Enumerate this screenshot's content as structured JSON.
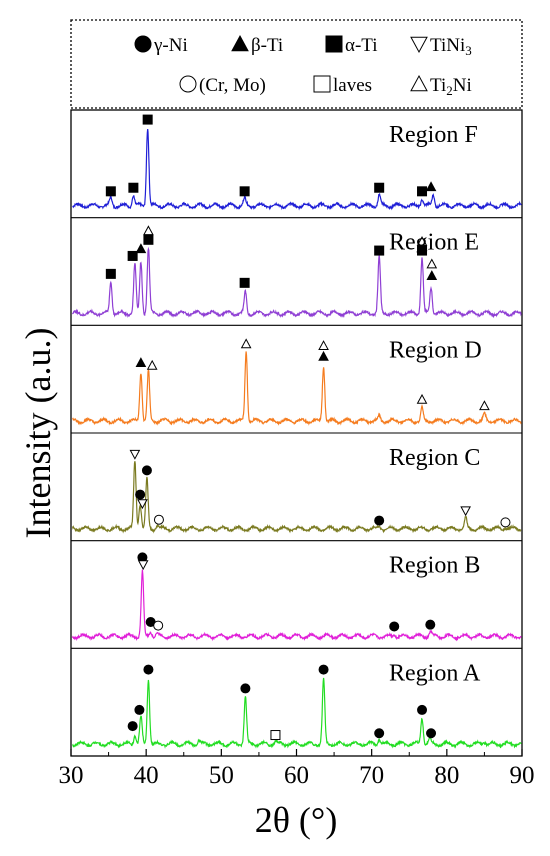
{
  "legend": {
    "row1": [
      {
        "symbol": "circle-filled",
        "label": "γ-Ni"
      },
      {
        "symbol": "triangle-filled",
        "label": "β-Ti"
      },
      {
        "symbol": "square-filled",
        "label": "α-Ti"
      },
      {
        "symbol": "triangle-down-open",
        "label": "TiNi",
        "sub": "3"
      }
    ],
    "row2": [
      {
        "symbol": "circle-open",
        "label": "(Cr, Mo)"
      },
      {
        "symbol": "square-open",
        "label": "laves"
      },
      {
        "symbol": "triangle-open",
        "label": "Ti",
        "sub": "2",
        "tail": "Ni"
      }
    ]
  },
  "chart_data": {
    "type": "line",
    "xlabel": "2θ (°)",
    "ylabel": "Intensity (a.u.)",
    "xlim": [
      30,
      90
    ],
    "x_ticks": [
      "30",
      "40",
      "50",
      "60",
      "70",
      "80",
      "90"
    ],
    "colors": {
      "F": "#1f1fd6",
      "E": "#8f3fd4",
      "D": "#f57c1f",
      "C": "#7a7a20",
      "B": "#e020d8",
      "A": "#22dd22"
    },
    "series": [
      {
        "name": "Region F",
        "key": "F",
        "peaks": [
          {
            "x": 35.3,
            "h": 0.09
          },
          {
            "x": 38.3,
            "h": 0.12
          },
          {
            "x": 40.2,
            "h": 0.88
          },
          {
            "x": 53.1,
            "h": 0.08
          },
          {
            "x": 71.0,
            "h": 0.12
          },
          {
            "x": 76.7,
            "h": 0.08
          },
          {
            "x": 78.2,
            "h": 0.13
          }
        ],
        "markers": [
          {
            "x": 35.3,
            "h": 0.16,
            "symbol": "square-filled"
          },
          {
            "x": 38.3,
            "h": 0.2,
            "symbol": "square-filled"
          },
          {
            "x": 40.2,
            "h": 0.96,
            "symbol": "square-filled"
          },
          {
            "x": 53.1,
            "h": 0.16,
            "symbol": "square-filled"
          },
          {
            "x": 71.0,
            "h": 0.2,
            "symbol": "square-filled"
          },
          {
            "x": 76.7,
            "h": 0.16,
            "symbol": "square-filled"
          },
          {
            "x": 77.9,
            "h": 0.21,
            "symbol": "triangle-filled"
          }
        ]
      },
      {
        "name": "Region E",
        "key": "E",
        "peaks": [
          {
            "x": 35.3,
            "h": 0.36
          },
          {
            "x": 38.5,
            "h": 0.55
          },
          {
            "x": 39.3,
            "h": 0.58
          },
          {
            "x": 40.3,
            "h": 0.72
          },
          {
            "x": 53.2,
            "h": 0.24
          },
          {
            "x": 71.0,
            "h": 0.62
          },
          {
            "x": 76.7,
            "h": 0.62
          },
          {
            "x": 77.9,
            "h": 0.3
          }
        ],
        "markers": [
          {
            "x": 35.3,
            "h": 0.44,
            "symbol": "square-filled"
          },
          {
            "x": 38.2,
            "h": 0.64,
            "symbol": "square-filled"
          },
          {
            "x": 39.3,
            "h": 0.72,
            "symbol": "triangle-filled"
          },
          {
            "x": 40.3,
            "h": 0.82,
            "symbol": "square-filled"
          },
          {
            "x": 40.3,
            "h": 0.92,
            "symbol": "triangle-open"
          },
          {
            "x": 53.1,
            "h": 0.34,
            "symbol": "square-filled"
          },
          {
            "x": 71.0,
            "h": 0.7,
            "symbol": "square-filled"
          },
          {
            "x": 76.7,
            "h": 0.7,
            "symbol": "square-filled"
          },
          {
            "x": 76.7,
            "h": 0.8,
            "symbol": "triangle-open"
          },
          {
            "x": 78.0,
            "h": 0.42,
            "symbol": "triangle-filled"
          },
          {
            "x": 78.0,
            "h": 0.55,
            "symbol": "triangle-open"
          }
        ]
      },
      {
        "name": "Region D",
        "key": "D",
        "peaks": [
          {
            "x": 39.3,
            "h": 0.55
          },
          {
            "x": 40.3,
            "h": 0.55
          },
          {
            "x": 53.3,
            "h": 0.78
          },
          {
            "x": 63.6,
            "h": 0.62
          },
          {
            "x": 71.0,
            "h": 0.05
          },
          {
            "x": 76.7,
            "h": 0.14
          },
          {
            "x": 85.0,
            "h": 0.08
          }
        ],
        "markers": [
          {
            "x": 39.3,
            "h": 0.65,
            "symbol": "triangle-filled"
          },
          {
            "x": 40.8,
            "h": 0.62,
            "symbol": "triangle-open"
          },
          {
            "x": 53.3,
            "h": 0.86,
            "symbol": "triangle-open"
          },
          {
            "x": 63.6,
            "h": 0.72,
            "symbol": "triangle-filled"
          },
          {
            "x": 63.6,
            "h": 0.84,
            "symbol": "triangle-open"
          },
          {
            "x": 76.7,
            "h": 0.24,
            "symbol": "triangle-open"
          },
          {
            "x": 85.0,
            "h": 0.17,
            "symbol": "triangle-open"
          }
        ]
      },
      {
        "name": "Region C",
        "key": "C",
        "peaks": [
          {
            "x": 38.5,
            "h": 0.75
          },
          {
            "x": 39.2,
            "h": 0.28
          },
          {
            "x": 40.1,
            "h": 0.55
          },
          {
            "x": 41.5,
            "h": 0.04
          },
          {
            "x": 71.0,
            "h": 0.02
          },
          {
            "x": 82.5,
            "h": 0.12
          },
          {
            "x": 87.8,
            "h": 0.02
          }
        ],
        "markers": [
          {
            "x": 38.5,
            "h": 0.83,
            "symbol": "triangle-down-open"
          },
          {
            "x": 39.2,
            "h": 0.38,
            "symbol": "circle-filled"
          },
          {
            "x": 39.5,
            "h": 0.28,
            "symbol": "triangle-down-open"
          },
          {
            "x": 40.1,
            "h": 0.65,
            "symbol": "circle-filled"
          },
          {
            "x": 41.7,
            "h": 0.1,
            "symbol": "circle-open"
          },
          {
            "x": 71.0,
            "h": 0.09,
            "symbol": "circle-filled"
          },
          {
            "x": 82.5,
            "h": 0.2,
            "symbol": "triangle-down-open"
          },
          {
            "x": 87.8,
            "h": 0.07,
            "symbol": "circle-open"
          }
        ]
      },
      {
        "name": "Region B",
        "key": "B",
        "peaks": [
          {
            "x": 39.5,
            "h": 0.72
          },
          {
            "x": 40.6,
            "h": 0.06
          },
          {
            "x": 41.4,
            "h": 0.03
          },
          {
            "x": 73.0,
            "h": 0.03
          },
          {
            "x": 77.8,
            "h": 0.05
          }
        ],
        "markers": [
          {
            "x": 39.5,
            "h": 0.88,
            "symbol": "circle-filled"
          },
          {
            "x": 39.6,
            "h": 0.8,
            "symbol": "triangle-down-open"
          },
          {
            "x": 40.6,
            "h": 0.16,
            "symbol": "circle-filled"
          },
          {
            "x": 41.6,
            "h": 0.12,
            "symbol": "circle-open"
          },
          {
            "x": 73.0,
            "h": 0.11,
            "symbol": "circle-filled"
          },
          {
            "x": 77.8,
            "h": 0.13,
            "symbol": "circle-filled"
          }
        ]
      },
      {
        "name": "Region A",
        "key": "A",
        "peaks": [
          {
            "x": 38.5,
            "h": 0.1
          },
          {
            "x": 39.3,
            "h": 0.3
          },
          {
            "x": 40.3,
            "h": 0.72
          },
          {
            "x": 47.0,
            "h": 0.04
          },
          {
            "x": 53.2,
            "h": 0.52
          },
          {
            "x": 57.2,
            "h": 0.03
          },
          {
            "x": 63.6,
            "h": 0.72
          },
          {
            "x": 71.0,
            "h": 0.06
          },
          {
            "x": 76.7,
            "h": 0.3
          },
          {
            "x": 77.7,
            "h": 0.06
          },
          {
            "x": 85.0,
            "h": 0.03
          }
        ],
        "markers": [
          {
            "x": 38.2,
            "h": 0.2,
            "symbol": "circle-filled"
          },
          {
            "x": 39.1,
            "h": 0.38,
            "symbol": "circle-filled"
          },
          {
            "x": 40.3,
            "h": 0.83,
            "symbol": "circle-filled"
          },
          {
            "x": 53.2,
            "h": 0.62,
            "symbol": "circle-filled"
          },
          {
            "x": 57.2,
            "h": 0.1,
            "symbol": "square-open"
          },
          {
            "x": 63.6,
            "h": 0.83,
            "symbol": "circle-filled"
          },
          {
            "x": 71.0,
            "h": 0.12,
            "symbol": "circle-filled"
          },
          {
            "x": 76.7,
            "h": 0.38,
            "symbol": "circle-filled"
          },
          {
            "x": 77.9,
            "h": 0.12,
            "symbol": "circle-filled"
          }
        ]
      }
    ]
  }
}
